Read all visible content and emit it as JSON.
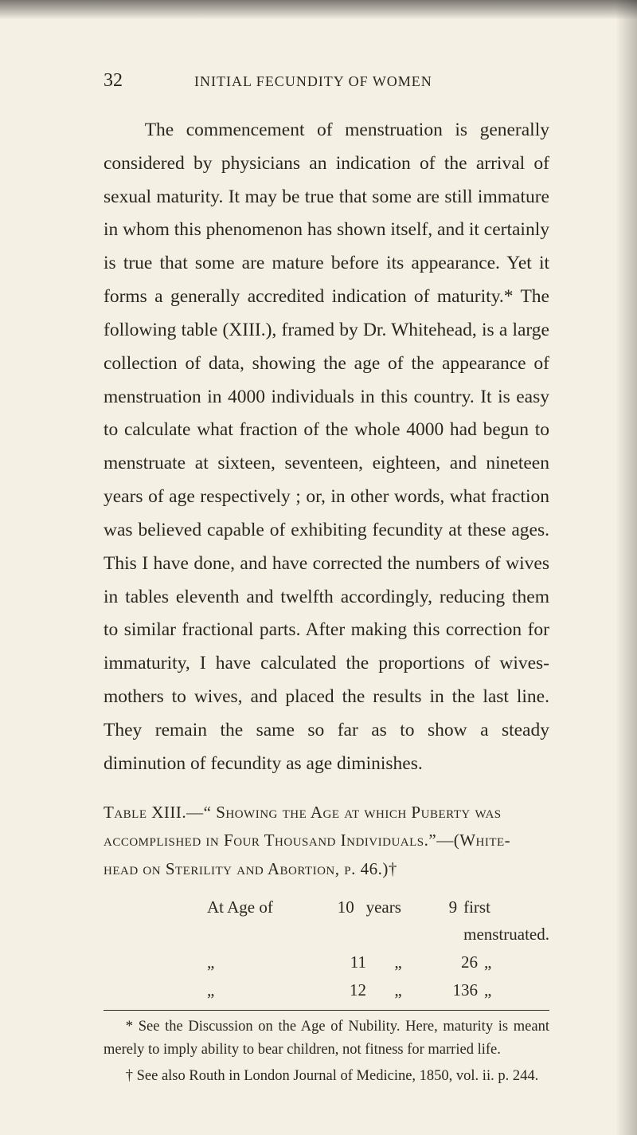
{
  "header": {
    "page_number": "32",
    "running_title": "INITIAL FECUNDITY OF WOMEN"
  },
  "body": {
    "paragraph": "The commencement of menstruation is generally considered by physicians an indication of the arrival of sexual maturity. It may be true that some are still immature in whom this phenomenon has shown itself, and it certainly is true that some are mature before its appearance. Yet it forms a generally accredited indication of maturity.* The following table (XIII.), framed by Dr. Whitehead, is a large collection of data, showing the age of the appearance of menstruation in 4000 individuals in this country. It is easy to calculate what fraction of the whole 4000 had begun to menstruate at sixteen, seventeen, eighteen, and nineteen years of age respectively ; or, in other words, what fraction was believed capable of exhibiting fecundity at these ages. This I have done, and have corrected the numbers of wives in tables eleventh and twelfth accordingly, reducing them to similar fractional parts. After making this correction for immaturity, I have calculated the proportions of wives-mothers to wives, and placed the results in the last line. They remain the same so far as to show a steady diminution of fecundity as age diminishes."
  },
  "table": {
    "title_a": "Table XIII.—“ Showing the Age at which Puberty was",
    "title_b": "accomplished in Four Thousand Individuals.”—(White-",
    "title_c": "head on Sterility and Abortion, p. 46.)†",
    "rows": [
      {
        "label": "At Age of",
        "num": "10",
        "word": "years",
        "count": "9",
        "rest": "first menstruated."
      },
      {
        "label": "„",
        "num": "11",
        "word": "„",
        "count": "26",
        "rest": "„"
      },
      {
        "label": "„",
        "num": "12",
        "word": "„",
        "count": "136",
        "rest": "„"
      }
    ]
  },
  "footnotes": {
    "star": "* See the Discussion on the Age of Nubility. Here, maturity is meant merely to imply ability to bear children, not fitness for married life.",
    "dagger": "† See also Routh in London Journal of Medicine, 1850, vol. ii. p. 244."
  }
}
